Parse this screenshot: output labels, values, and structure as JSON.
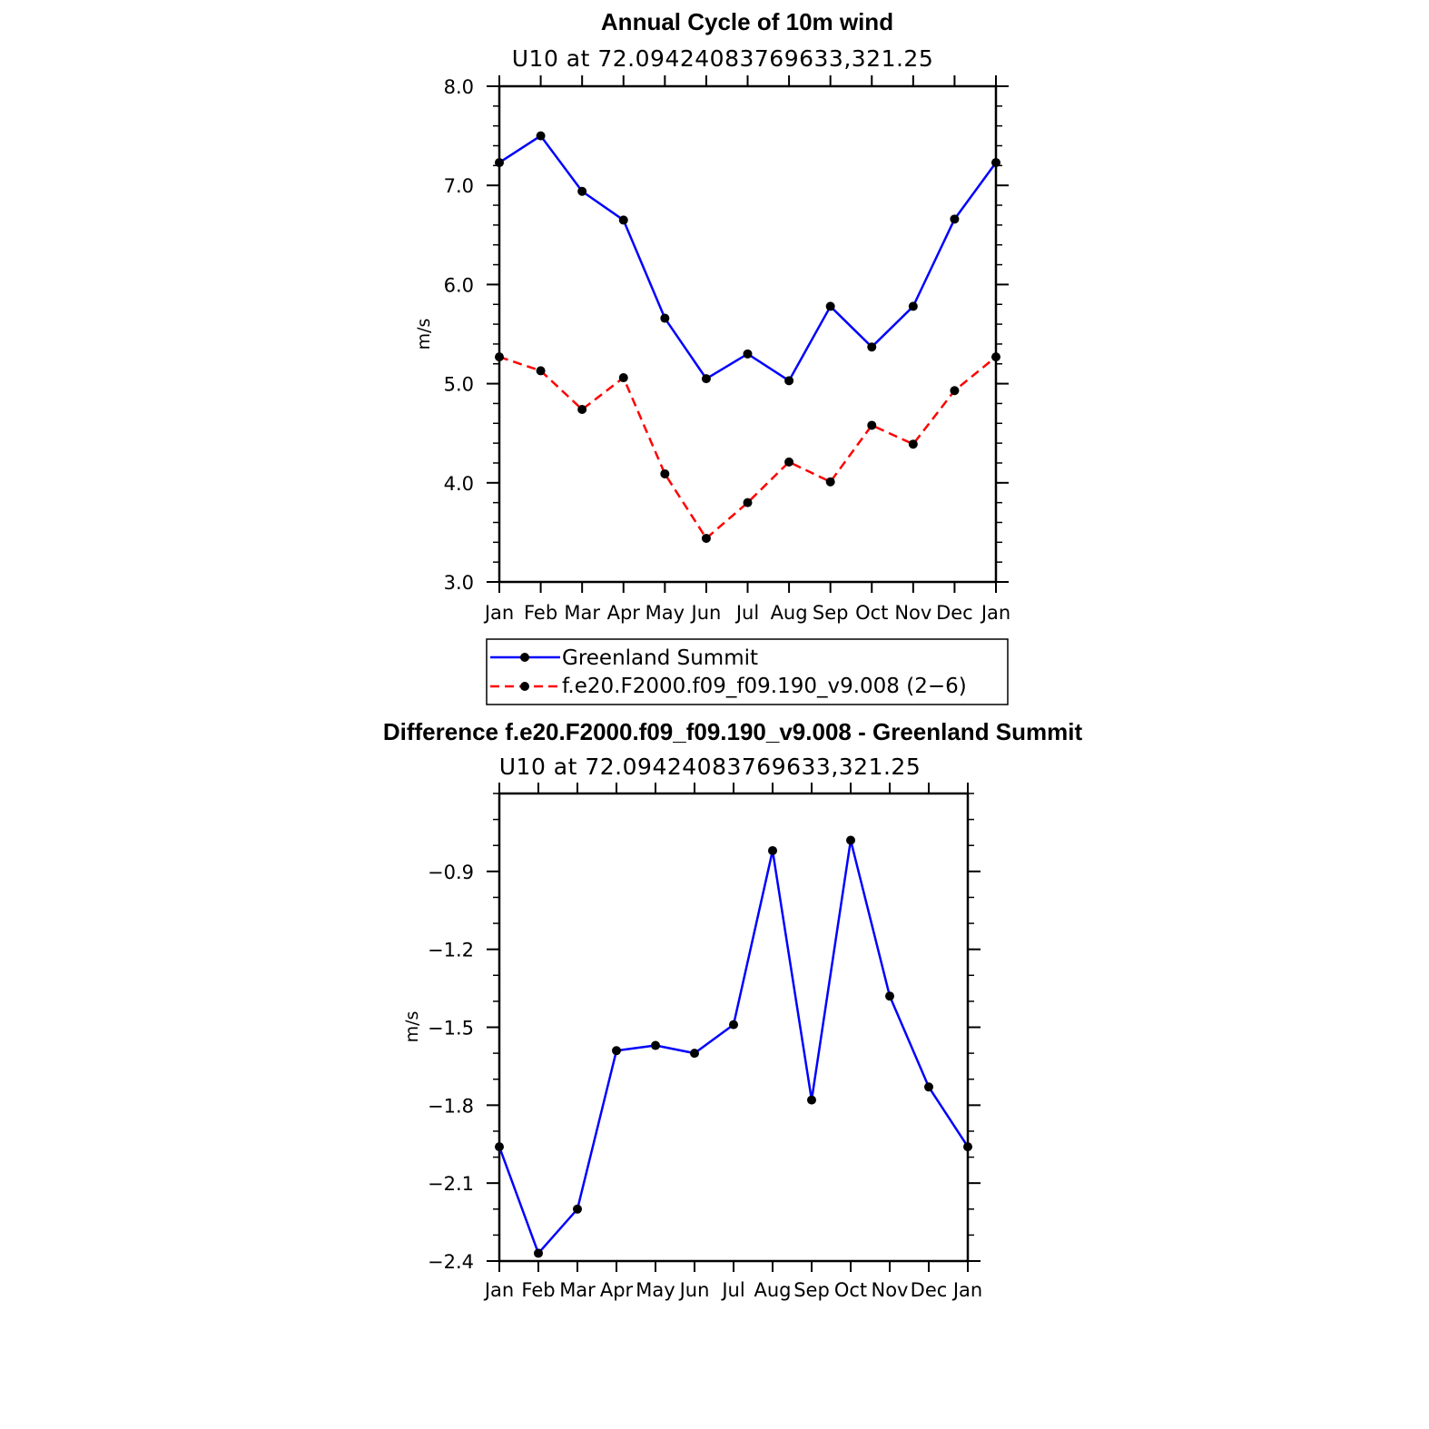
{
  "colors": {
    "blue": "#0000ff",
    "red": "#ff0000",
    "marker": "#000000"
  },
  "chart_data": [
    {
      "type": "line",
      "title": "Annual Cycle of 10m wind",
      "subtitle": "U10  at  72.09424083769633,321.25",
      "ylabel": "m/s",
      "categories": [
        "Jan",
        "Feb",
        "Mar",
        "Apr",
        "May",
        "Jun",
        "Jul",
        "Aug",
        "Sep",
        "Oct",
        "Nov",
        "Dec",
        "Jan"
      ],
      "ylim": [
        3.0,
        8.0
      ],
      "yticks": [
        3.0,
        4.0,
        5.0,
        6.0,
        7.0,
        8.0
      ],
      "ytick_labels": [
        "3.0",
        "4.0",
        "5.0",
        "6.0",
        "7.0",
        "8.0"
      ],
      "series": [
        {
          "name": "Greenland Summit",
          "color": "#0000ff",
          "style": "solid",
          "values": [
            7.23,
            7.5,
            6.94,
            6.65,
            5.66,
            5.05,
            5.3,
            5.03,
            5.78,
            5.37,
            5.78,
            6.66,
            7.23
          ]
        },
        {
          "name": "f.e20.F2000.f09_f09.190_v9.008 (2−6)",
          "color": "#ff0000",
          "style": "dashed",
          "values": [
            5.27,
            5.13,
            4.74,
            5.06,
            4.09,
            3.44,
            3.8,
            4.21,
            4.01,
            4.58,
            4.39,
            4.93,
            5.27
          ]
        }
      ],
      "legend": [
        "Greenland Summit",
        "f.e20.F2000.f09_f09.190_v9.008 (2−6)"
      ]
    },
    {
      "type": "line",
      "title": "Difference f.e20.F2000.f09_f09.190_v9.008 - Greenland Summit",
      "subtitle": "U10  at  72.09424083769633,321.25",
      "ylabel": "m/s",
      "categories": [
        "Jan",
        "Feb",
        "Mar",
        "Apr",
        "May",
        "Jun",
        "Jul",
        "Aug",
        "Sep",
        "Oct",
        "Nov",
        "Dec",
        "Jan"
      ],
      "ylim": [
        -2.4,
        -0.6
      ],
      "yticks": [
        -2.4,
        -2.1,
        -1.8,
        -1.5,
        -1.2,
        -0.9
      ],
      "ytick_labels": [
        "−2.4",
        "−2.1",
        "−1.8",
        "−1.5",
        "−1.2",
        "−0.9"
      ],
      "series": [
        {
          "name": "Difference",
          "color": "#0000ff",
          "style": "solid",
          "values": [
            -1.96,
            -2.37,
            -2.2,
            -1.59,
            -1.57,
            -1.6,
            -1.49,
            -0.82,
            -1.78,
            -0.78,
            -1.38,
            -1.73,
            -1.96
          ]
        }
      ]
    }
  ]
}
